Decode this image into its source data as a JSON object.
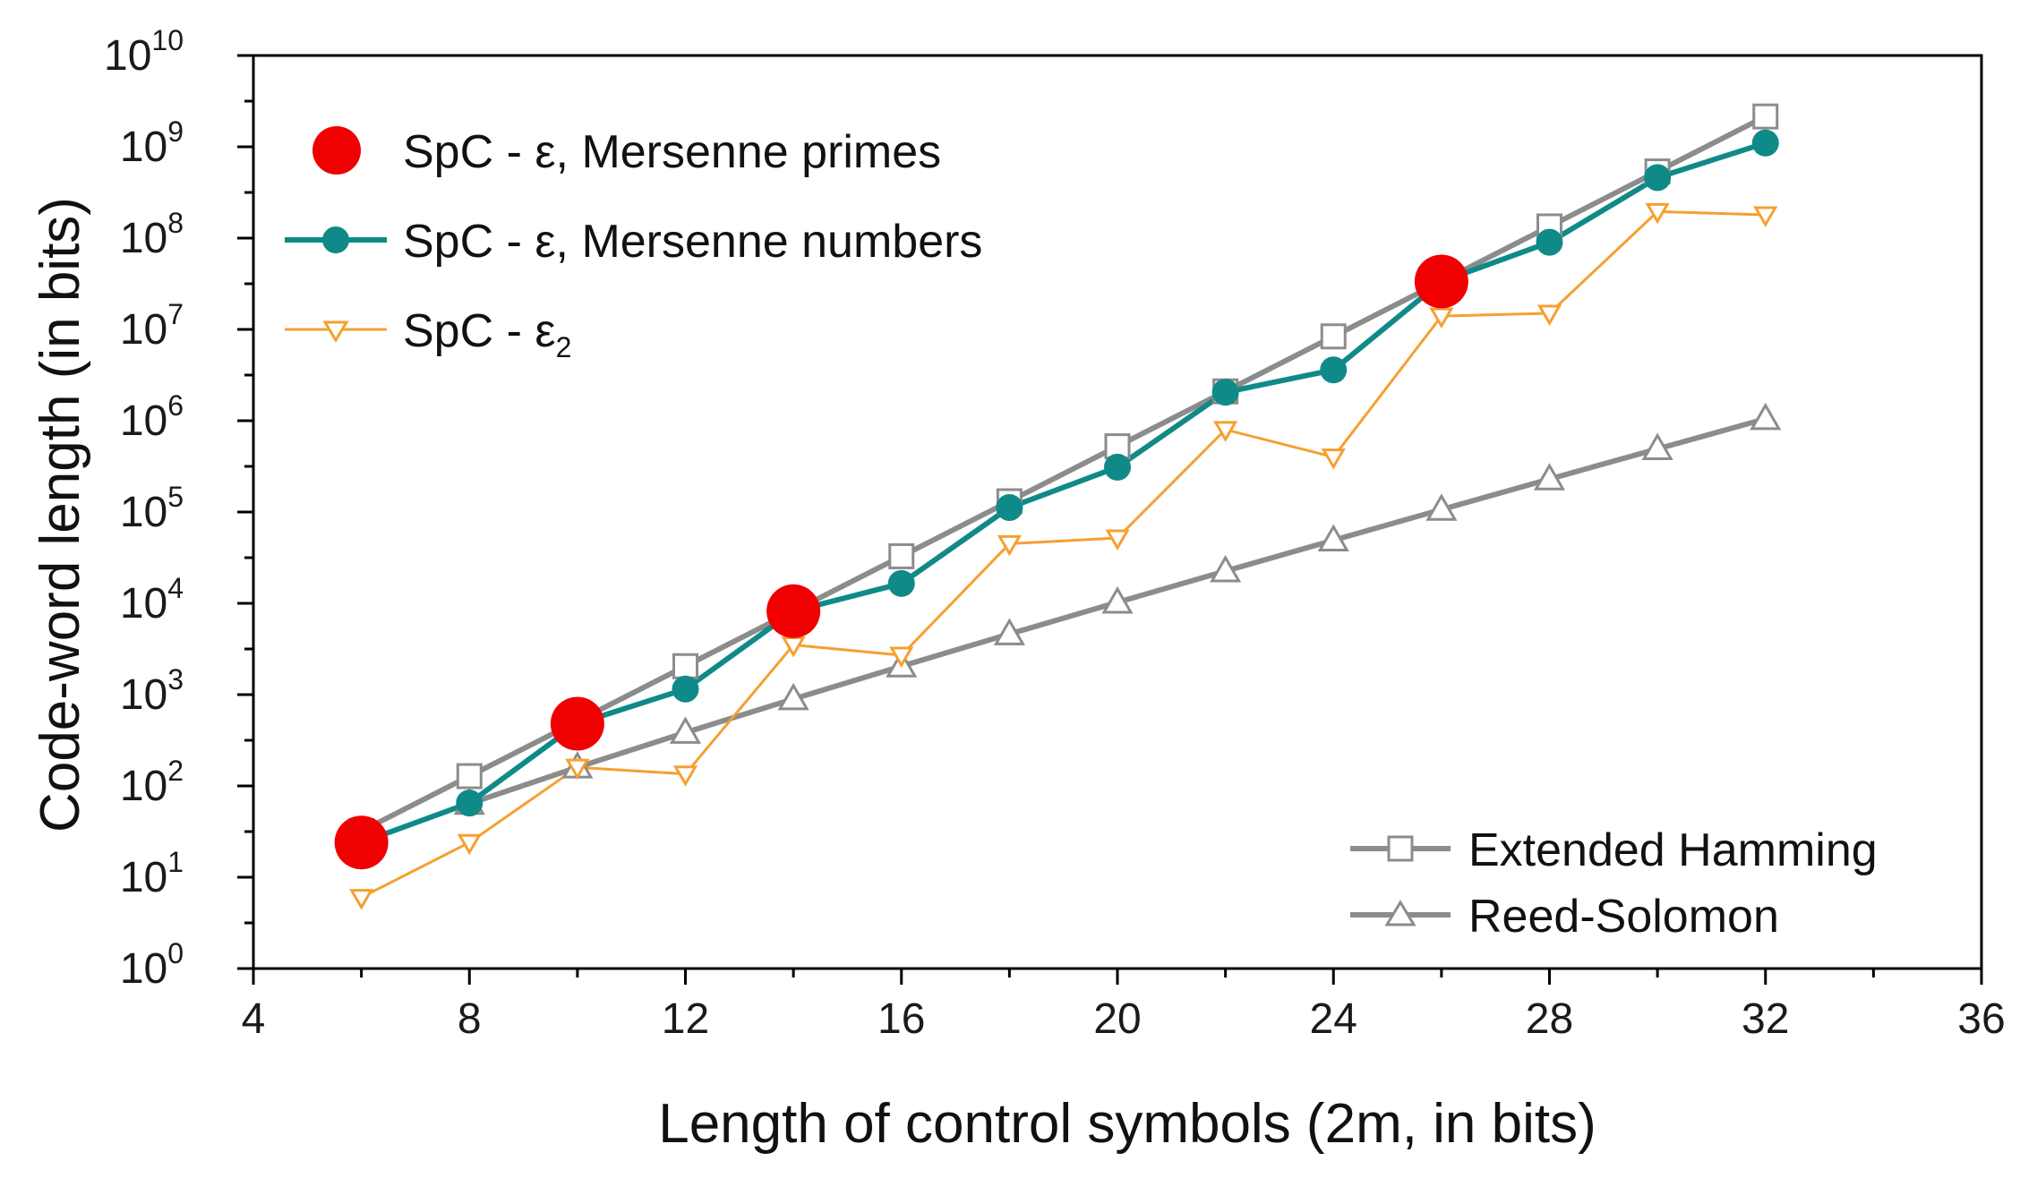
{
  "chart_data": {
    "type": "line",
    "xlabel": "Length of control symbols (2m, in bits)",
    "ylabel": "Code-word length (in bits)",
    "xlim": [
      4,
      36
    ],
    "ylim": [
      1,
      10000000000
    ],
    "yscale": "log",
    "x_ticks": [
      4,
      8,
      12,
      16,
      20,
      24,
      28,
      32,
      36
    ],
    "y_tick_exponents": [
      0,
      1,
      2,
      3,
      4,
      5,
      6,
      7,
      8,
      9,
      10
    ],
    "legend_placement": "top-left and bottom-right",
    "series": [
      {
        "name": "Extended Hamming",
        "color": "#8c8c8c",
        "marker": "square",
        "x": [
          6,
          8,
          10,
          12,
          14,
          16,
          18,
          20,
          22,
          24,
          26,
          28,
          30,
          32
        ],
        "y": [
          32,
          128,
          512,
          2048,
          8192,
          32768,
          131072,
          524288,
          2097152,
          8388608,
          33554432,
          134217728,
          536870912,
          2147483648
        ]
      },
      {
        "name": "Reed-Solomon",
        "color": "#8c8c8c",
        "marker": "triangle-up",
        "x": [
          8,
          10,
          12,
          14,
          16,
          18,
          20,
          22,
          24,
          26,
          28,
          30,
          32
        ],
        "y": [
          64,
          160,
          384,
          896,
          2048,
          4608,
          10240,
          22528,
          49152,
          106496,
          229376,
          491520,
          1048576
        ]
      },
      {
        "name": "SpC - ε, Mersenne numbers",
        "color": "#0f8a88",
        "marker": "circle",
        "x": [
          6,
          8,
          10,
          12,
          14,
          16,
          18,
          20,
          22,
          24,
          26,
          28,
          30,
          32
        ],
        "y": [
          24,
          65,
          480,
          1150,
          8200,
          16500,
          112000,
          310000,
          2050000,
          3600000,
          33500000,
          90000000,
          460000000,
          1100000000
        ]
      },
      {
        "name": "SpC - ε",
        "name_subscript": "2",
        "color": "#f5a030",
        "marker": "triangle-down",
        "x": [
          6,
          8,
          10,
          12,
          14,
          16,
          18,
          20,
          22,
          24,
          26,
          28,
          30,
          32
        ],
        "y": [
          6,
          24,
          160,
          135,
          3500,
          2700,
          45000,
          52000,
          800000,
          400000,
          14000000,
          15000000,
          195000000,
          180000000
        ]
      },
      {
        "name": "SpC - ε, Mersenne primes",
        "color": "#f00000",
        "marker": "big-circle",
        "x": [
          6,
          10,
          14,
          26
        ],
        "y": [
          24,
          480,
          8200,
          33500000
        ]
      }
    ]
  }
}
